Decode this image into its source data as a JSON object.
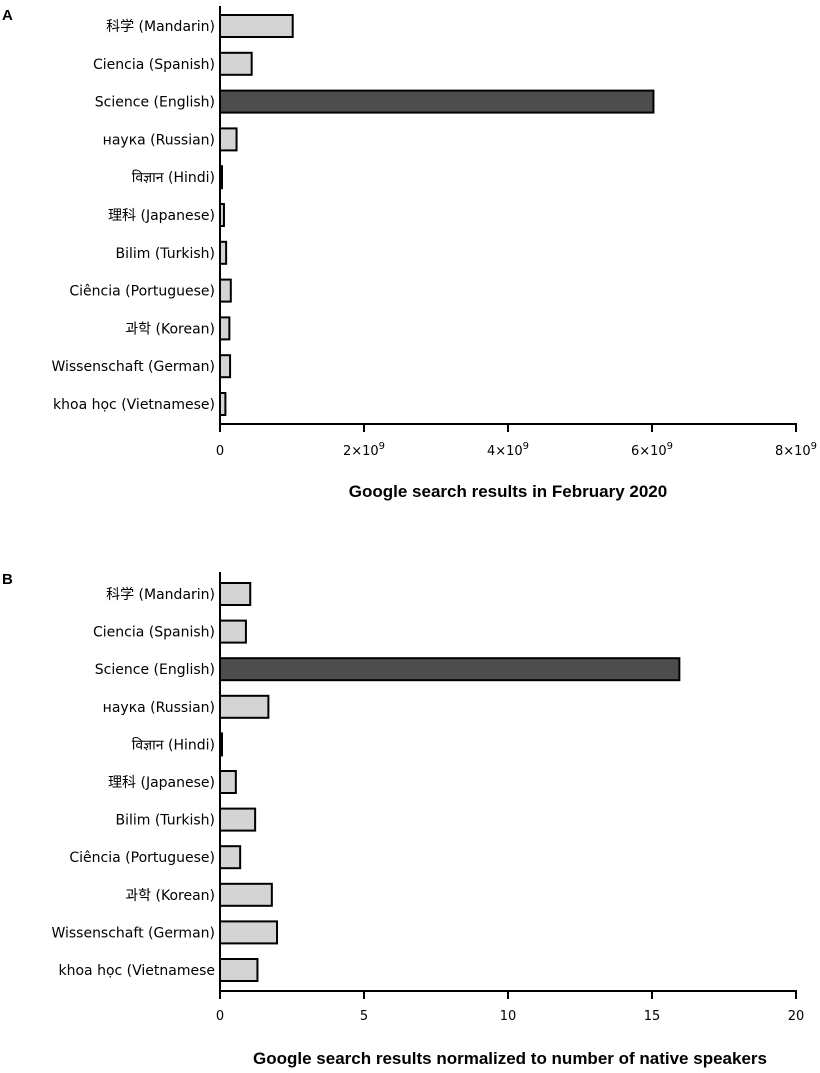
{
  "chart_data": [
    {
      "type": "bar",
      "orientation": "horizontal",
      "panel_label": "A",
      "xlabel": "Google search results in February 2020",
      "ylabel": "",
      "xlim": [
        0,
        8000000000
      ],
      "ticks": [
        0,
        2000000000,
        4000000000,
        6000000000,
        8000000000
      ],
      "tick_labels": [
        "0",
        "2×10^9",
        "4×10^9",
        "6×10^9",
        "8×10^9"
      ],
      "categories": [
        "科学 (Mandarin)",
        "Ciencia (Spanish)",
        "Science (English)",
        "наука (Russian)",
        "विज्ञान (Hindi)",
        "理科 (Japanese)",
        "Bilim (Turkish)",
        "Ciência (Portuguese)",
        "과학 (Korean)",
        "Wissenschaft (German)",
        "khoa học (Vietnamese)"
      ],
      "values": [
        1010000000,
        440000000,
        6020000000,
        230000000,
        15000000,
        55000000,
        85000000,
        150000000,
        130000000,
        140000000,
        75000000
      ],
      "highlight_index": 2,
      "colors": {
        "bar": "#d4d4d4",
        "highlight": "#4d4d4d",
        "stroke": "#000000"
      },
      "grid": false,
      "legend": "none"
    },
    {
      "type": "bar",
      "orientation": "horizontal",
      "panel_label": "B",
      "xlabel": "Google search results normalized to number of native speakers",
      "ylabel": "",
      "xlim": [
        0,
        20
      ],
      "ticks": [
        0,
        5,
        10,
        15,
        20
      ],
      "tick_labels": [
        "0",
        "5",
        "10",
        "15",
        "20"
      ],
      "categories": [
        "科学 (Mandarin)",
        "Ciencia (Spanish)",
        "Science (English)",
        "наука (Russian)",
        "विज्ञान (Hindi)",
        "理科 (Japanese)",
        "Bilim (Turkish)",
        "Ciência (Portuguese)",
        "과학 (Korean)",
        "Wissenschaft (German)",
        "khoa học (Vietnamese"
      ],
      "values": [
        1.05,
        0.9,
        15.95,
        1.68,
        0.05,
        0.55,
        1.22,
        0.7,
        1.8,
        1.98,
        1.3
      ],
      "highlight_index": 2,
      "colors": {
        "bar": "#d4d4d4",
        "highlight": "#4d4d4d",
        "stroke": "#000000"
      },
      "grid": false,
      "legend": "none"
    }
  ]
}
